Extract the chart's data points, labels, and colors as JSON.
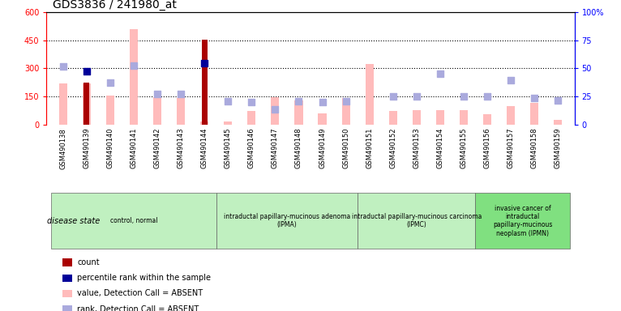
{
  "title": "GDS3836 / 241980_at",
  "samples": [
    "GSM490138",
    "GSM490139",
    "GSM490140",
    "GSM490141",
    "GSM490142",
    "GSM490143",
    "GSM490144",
    "GSM490145",
    "GSM490146",
    "GSM490147",
    "GSM490148",
    "GSM490149",
    "GSM490150",
    "GSM490151",
    "GSM490152",
    "GSM490153",
    "GSM490154",
    "GSM490155",
    "GSM490156",
    "GSM490157",
    "GSM490158",
    "GSM490159"
  ],
  "value_absent": [
    220,
    220,
    155,
    510,
    145,
    140,
    15,
    15,
    70,
    145,
    130,
    60,
    140,
    325,
    70,
    75,
    75,
    75,
    55,
    100,
    115,
    25
  ],
  "rank_absent": [
    310,
    null,
    225,
    315,
    165,
    165,
    null,
    125,
    120,
    80,
    125,
    120,
    125,
    null,
    150,
    150,
    270,
    150,
    150,
    235,
    140,
    130
  ],
  "count": [
    null,
    225,
    null,
    null,
    null,
    null,
    455,
    null,
    null,
    null,
    null,
    null,
    null,
    null,
    null,
    null,
    null,
    null,
    null,
    null,
    null,
    null
  ],
  "percentile": [
    null,
    285,
    null,
    null,
    null,
    null,
    330,
    null,
    null,
    null,
    null,
    null,
    null,
    null,
    null,
    null,
    null,
    null,
    null,
    null,
    null,
    null
  ],
  "ylim_left": [
    0,
    600
  ],
  "ylim_right": [
    0,
    100
  ],
  "yticks_left": [
    0,
    150,
    300,
    450,
    600
  ],
  "yticks_right": [
    0,
    25,
    50,
    75,
    100
  ],
  "hlines": [
    150,
    300,
    450
  ],
  "group_ranges": [
    [
      0,
      6
    ],
    [
      7,
      12
    ],
    [
      13,
      17
    ],
    [
      18,
      21
    ]
  ],
  "group_labels": [
    "control, normal",
    "intraductal papillary-mucinous adenoma\n(IPMA)",
    "intraductal papillary-mucinous carcinoma\n(IPMC)",
    "invasive cancer of\nintraductal\npapillary-mucinous\nneoplasm (IPMN)"
  ],
  "group_colors": [
    "#c0f0c0",
    "#c0f0c0",
    "#c0f0c0",
    "#80e080"
  ],
  "bar_width": 0.5,
  "value_color": "#ffbbbb",
  "rank_color": "#aaaadd",
  "count_color": "#aa0000",
  "percentile_color": "#000099",
  "left_axis_color": "red",
  "right_axis_color": "blue",
  "legend_items": [
    {
      "label": "count",
      "color": "#aa0000"
    },
    {
      "label": "percentile rank within the sample",
      "color": "#000099"
    },
    {
      "label": "value, Detection Call = ABSENT",
      "color": "#ffbbbb"
    },
    {
      "label": "rank, Detection Call = ABSENT",
      "color": "#aaaadd"
    }
  ]
}
